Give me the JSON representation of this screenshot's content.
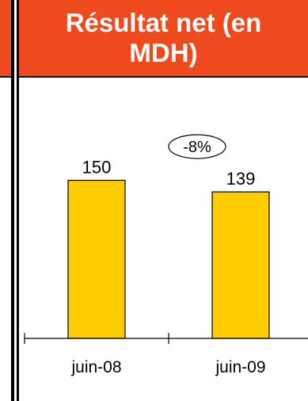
{
  "chart_data": {
    "type": "bar",
    "title": "Résultat net (en MDH)",
    "categories": [
      "juin-08",
      "juin-09"
    ],
    "values": [
      150,
      139
    ],
    "annotation": "-8%",
    "bar_color": "#ffcc00",
    "header_color": "#ee4a1e"
  }
}
